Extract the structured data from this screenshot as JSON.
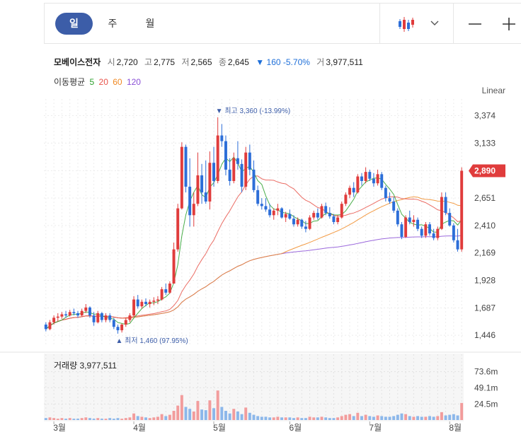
{
  "tabs": [
    {
      "label": "일",
      "active": true
    },
    {
      "label": "주",
      "active": false
    },
    {
      "label": "월",
      "active": false
    }
  ],
  "stock": {
    "name": "모베이스전자",
    "open_label": "시",
    "open": "2,720",
    "high_label": "고",
    "high": "2,775",
    "low_label": "저",
    "low": "2,565",
    "close_label": "종",
    "close": "2,645",
    "change_arrow": "▼",
    "change": "160",
    "change_pct": "-5.70%",
    "volume_label": "거",
    "volume": "3,977,511"
  },
  "moving_average": {
    "label": "이동평균",
    "periods": [
      {
        "value": "5",
        "color": "#2ca02c"
      },
      {
        "value": "20",
        "color": "#e8534a"
      },
      {
        "value": "60",
        "color": "#f08a24"
      },
      {
        "value": "120",
        "color": "#8a4fd6"
      }
    ]
  },
  "scale_label": "Linear",
  "colors": {
    "up": "#e03c3c",
    "down": "#2d6ed8",
    "marker": "#3c5da8",
    "vol_up": "#f29c9c",
    "vol_down": "#8cb7ea"
  },
  "icons": {
    "chart_type": "candlestick-icon",
    "dropdown": "chevron-down-icon",
    "zoom_out": "minus-icon",
    "zoom_in": "plus-icon"
  },
  "chart_data": {
    "type": "candlestick",
    "price_axis": {
      "ticks": [
        "3,374",
        "3,133",
        "2,890",
        "2,651",
        "2,410",
        "2,169",
        "1,928",
        "1,687",
        "1,446"
      ],
      "ylim": [
        1360,
        3520
      ],
      "current_price": "2,890"
    },
    "max_label": "최고 3,360 (-13.99%)",
    "min_label": "최저 1,460 (97.95%)",
    "max_value": 3360,
    "min_value": 1460,
    "volume_label": "거래량 3,977,511",
    "volume_axis": {
      "ticks": [
        "73.6m",
        "49.1m",
        "24.5m"
      ],
      "ylim": [
        0,
        98
      ]
    },
    "months": [
      "3월",
      "4월",
      "5월",
      "6월",
      "7월",
      "8월"
    ],
    "month_start_index": [
      2,
      22,
      42,
      61,
      81,
      101
    ],
    "candles": [
      [
        1540,
        1560,
        1480,
        1500
      ],
      [
        1500,
        1580,
        1490,
        1560
      ],
      [
        1560,
        1620,
        1540,
        1600
      ],
      [
        1600,
        1640,
        1570,
        1610
      ],
      [
        1610,
        1650,
        1590,
        1630
      ],
      [
        1630,
        1660,
        1600,
        1620
      ],
      [
        1620,
        1670,
        1610,
        1650
      ],
      [
        1650,
        1680,
        1620,
        1640
      ],
      [
        1640,
        1660,
        1600,
        1620
      ],
      [
        1620,
        1680,
        1610,
        1660
      ],
      [
        1660,
        1720,
        1640,
        1690
      ],
      [
        1690,
        1700,
        1600,
        1620
      ],
      [
        1620,
        1650,
        1530,
        1560
      ],
      [
        1560,
        1660,
        1550,
        1640
      ],
      [
        1640,
        1650,
        1560,
        1580
      ],
      [
        1580,
        1640,
        1560,
        1620
      ],
      [
        1620,
        1640,
        1560,
        1580
      ],
      [
        1580,
        1600,
        1500,
        1520
      ],
      [
        1520,
        1540,
        1460,
        1490
      ],
      [
        1490,
        1550,
        1470,
        1540
      ],
      [
        1540,
        1600,
        1520,
        1580
      ],
      [
        1580,
        1640,
        1560,
        1620
      ],
      [
        1620,
        1790,
        1610,
        1760
      ],
      [
        1760,
        1800,
        1680,
        1700
      ],
      [
        1700,
        1760,
        1680,
        1740
      ],
      [
        1740,
        1770,
        1700,
        1720
      ],
      [
        1720,
        1760,
        1690,
        1740
      ],
      [
        1740,
        1780,
        1710,
        1750
      ],
      [
        1750,
        1790,
        1720,
        1760
      ],
      [
        1760,
        1870,
        1750,
        1850
      ],
      [
        1850,
        1900,
        1800,
        1820
      ],
      [
        1820,
        1920,
        1810,
        1900
      ],
      [
        1900,
        2260,
        1900,
        2200
      ],
      [
        2200,
        2600,
        2180,
        2560
      ],
      [
        2560,
        3140,
        2550,
        3100
      ],
      [
        3100,
        3120,
        2700,
        2750
      ],
      [
        2750,
        3000,
        2400,
        2500
      ],
      [
        2500,
        2700,
        2400,
        2600
      ],
      [
        2600,
        3050,
        2580,
        2850
      ],
      [
        2850,
        2950,
        2600,
        2700
      ],
      [
        2700,
        2980,
        2600,
        2620
      ],
      [
        2620,
        3060,
        2550,
        2960
      ],
      [
        2960,
        3100,
        2750,
        2800
      ],
      [
        2800,
        3360,
        2780,
        3200
      ],
      [
        3200,
        3300,
        3100,
        3150
      ],
      [
        3150,
        3200,
        2850,
        2900
      ],
      [
        2900,
        3000,
        2760,
        2800
      ],
      [
        2800,
        3050,
        2780,
        3000
      ],
      [
        3000,
        3150,
        2900,
        2950
      ],
      [
        2950,
        2990,
        2700,
        2750
      ],
      [
        2750,
        3100,
        2720,
        3050
      ],
      [
        3050,
        3120,
        2850,
        2900
      ],
      [
        2900,
        2980,
        2700,
        2720
      ],
      [
        2720,
        2760,
        2580,
        2600
      ],
      [
        2600,
        2650,
        2550,
        2580
      ],
      [
        2580,
        2650,
        2530,
        2550
      ],
      [
        2550,
        2600,
        2480,
        2500
      ],
      [
        2500,
        2560,
        2460,
        2540
      ],
      [
        2540,
        2600,
        2500,
        2560
      ],
      [
        2560,
        2570,
        2470,
        2480
      ],
      [
        2480,
        2530,
        2440,
        2510
      ],
      [
        2510,
        2550,
        2460,
        2470
      ],
      [
        2470,
        2500,
        2400,
        2420
      ],
      [
        2420,
        2480,
        2400,
        2460
      ],
      [
        2460,
        2470,
        2380,
        2400
      ],
      [
        2400,
        2450,
        2350,
        2380
      ],
      [
        2380,
        2500,
        2370,
        2480
      ],
      [
        2480,
        2540,
        2460,
        2520
      ],
      [
        2520,
        2560,
        2460,
        2480
      ],
      [
        2480,
        2600,
        2470,
        2580
      ],
      [
        2580,
        2610,
        2500,
        2520
      ],
      [
        2520,
        2570,
        2470,
        2490
      ],
      [
        2490,
        2510,
        2420,
        2440
      ],
      [
        2440,
        2500,
        2420,
        2480
      ],
      [
        2480,
        2620,
        2470,
        2600
      ],
      [
        2600,
        2700,
        2580,
        2680
      ],
      [
        2680,
        2760,
        2650,
        2740
      ],
      [
        2740,
        2790,
        2660,
        2700
      ],
      [
        2700,
        2860,
        2690,
        2840
      ],
      [
        2840,
        2870,
        2760,
        2800
      ],
      [
        2800,
        2920,
        2780,
        2880
      ],
      [
        2880,
        2900,
        2800,
        2820
      ],
      [
        2820,
        2870,
        2750,
        2780
      ],
      [
        2780,
        2900,
        2760,
        2860
      ],
      [
        2860,
        2880,
        2720,
        2740
      ],
      [
        2740,
        2760,
        2620,
        2650
      ],
      [
        2650,
        2700,
        2600,
        2620
      ],
      [
        2620,
        2660,
        2520,
        2540
      ],
      [
        2540,
        2560,
        2400,
        2420
      ],
      [
        2420,
        2440,
        2290,
        2310
      ],
      [
        2310,
        2500,
        2300,
        2480
      ],
      [
        2480,
        2540,
        2420,
        2440
      ],
      [
        2440,
        2500,
        2400,
        2460
      ],
      [
        2460,
        2480,
        2360,
        2380
      ],
      [
        2380,
        2400,
        2300,
        2320
      ],
      [
        2320,
        2440,
        2300,
        2420
      ],
      [
        2420,
        2440,
        2320,
        2340
      ],
      [
        2340,
        2380,
        2280,
        2300
      ],
      [
        2300,
        2400,
        2280,
        2380
      ],
      [
        2380,
        2700,
        2370,
        2660
      ],
      [
        2660,
        2700,
        2500,
        2520
      ],
      [
        2520,
        2560,
        2400,
        2410
      ],
      [
        2410,
        2430,
        2260,
        2280
      ],
      [
        2280,
        2380,
        2180,
        2200
      ],
      [
        2200,
        2920,
        2180,
        2890
      ]
    ],
    "volumes": [
      3,
      4,
      3,
      2,
      3,
      2,
      3,
      2,
      2,
      3,
      4,
      3,
      2,
      3,
      2,
      2,
      3,
      2,
      3,
      2,
      3,
      4,
      10,
      6,
      5,
      4,
      3,
      4,
      5,
      9,
      6,
      8,
      14,
      22,
      38,
      20,
      17,
      13,
      29,
      16,
      15,
      30,
      18,
      45,
      20,
      14,
      10,
      17,
      13,
      9,
      19,
      11,
      8,
      6,
      5,
      5,
      4,
      4,
      5,
      4,
      4,
      4,
      3,
      4,
      3,
      3,
      5,
      4,
      4,
      5,
      4,
      3,
      3,
      4,
      6,
      8,
      9,
      6,
      11,
      6,
      8,
      6,
      5,
      7,
      6,
      5,
      5,
      6,
      8,
      10,
      9,
      6,
      5,
      6,
      5,
      5,
      6,
      5,
      6,
      12,
      7,
      8,
      9,
      7,
      26
    ]
  }
}
